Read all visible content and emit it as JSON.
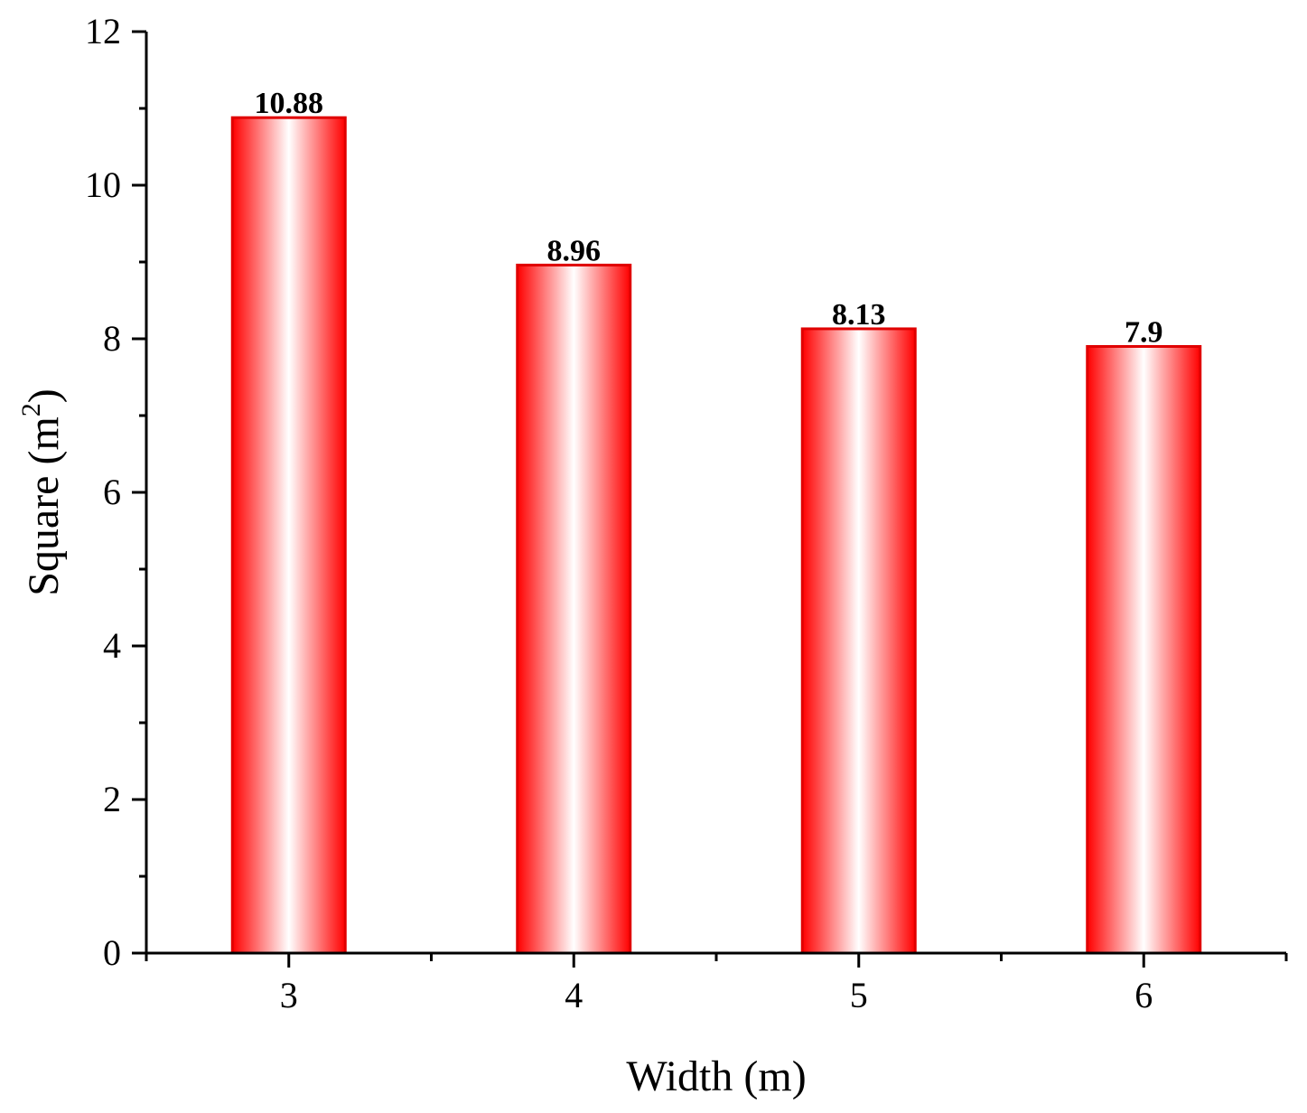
{
  "chart_data": {
    "type": "bar",
    "categories": [
      "3",
      "4",
      "5",
      "6"
    ],
    "values": [
      10.88,
      8.96,
      8.13,
      7.9
    ],
    "data_labels": [
      "10.88",
      "8.96",
      "8.13",
      "7.9"
    ],
    "title": "",
    "xlabel": "Width (m)",
    "ylabel_main": "Square (m",
    "ylabel_sup": "2",
    "ylabel_close": ")",
    "ylim": [
      0,
      12
    ],
    "yticks": [
      0,
      2,
      4,
      6,
      8,
      10,
      12
    ],
    "ytick_labels": [
      "0",
      "2",
      "4",
      "6",
      "8",
      "10",
      "12"
    ],
    "grid": false,
    "legend": "none",
    "bar_color": "#e00000",
    "bar_fill": "horizontal red-white-red gradient"
  }
}
